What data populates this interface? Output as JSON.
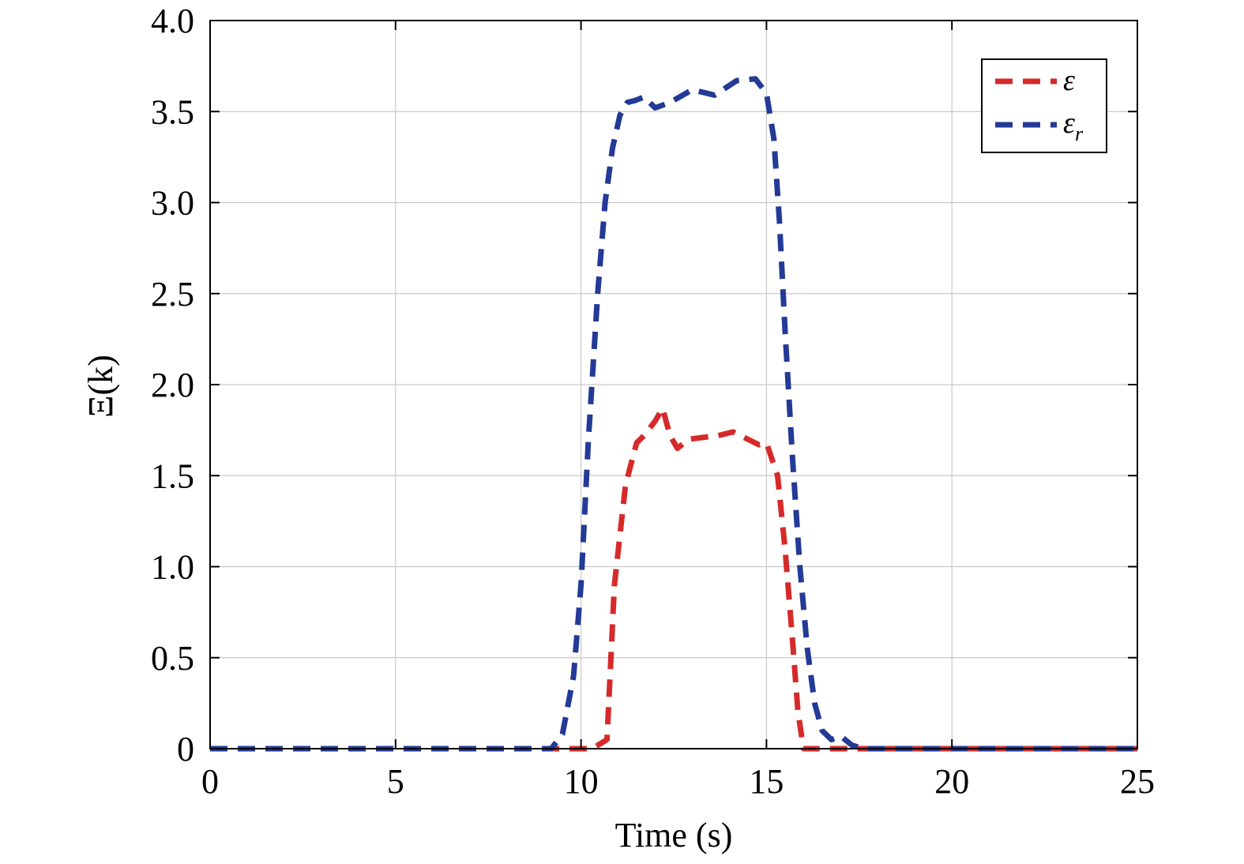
{
  "chart_data": {
    "type": "line",
    "title": "",
    "xlabel": "Time (s)",
    "ylabel": "Ξ(k)",
    "xlim": [
      0,
      25
    ],
    "ylim": [
      0,
      4.0
    ],
    "x_ticks": [
      0,
      5,
      10,
      15,
      20,
      25
    ],
    "x_tick_labels": [
      "0",
      "5",
      "10",
      "15",
      "20",
      "25"
    ],
    "y_ticks": [
      0,
      0.5,
      1.0,
      1.5,
      2.0,
      2.5,
      3.0,
      3.5,
      4.0
    ],
    "y_tick_labels": [
      "0",
      "0.5",
      "1.0",
      "1.5",
      "2.0",
      "2.5",
      "3.0",
      "3.5",
      "4.0"
    ],
    "grid": true,
    "legend_position": "top-right",
    "series": [
      {
        "name": "ε",
        "color": "#d62a2a",
        "line_style": "dashed",
        "x": [
          0,
          10.3,
          10.7,
          10.9,
          11.2,
          11.5,
          11.7,
          12.0,
          12.2,
          12.4,
          12.6,
          12.9,
          13.3,
          13.7,
          14.1,
          14.5,
          14.8,
          15.0,
          15.3,
          15.5,
          15.7,
          15.85,
          16.0,
          16.2,
          25
        ],
        "y": [
          0,
          0,
          0.05,
          0.9,
          1.45,
          1.68,
          1.72,
          1.8,
          1.87,
          1.72,
          1.65,
          1.7,
          1.71,
          1.72,
          1.74,
          1.7,
          1.67,
          1.68,
          1.5,
          1.1,
          0.6,
          0.2,
          0,
          0,
          0
        ]
      },
      {
        "name": "ε_r",
        "color": "#233a96",
        "line_style": "dashed",
        "x": [
          0,
          9.2,
          9.5,
          9.8,
          10.0,
          10.2,
          10.45,
          10.65,
          10.85,
          11.05,
          11.25,
          11.45,
          11.7,
          12.0,
          12.4,
          13.0,
          13.6,
          14.2,
          14.7,
          15.0,
          15.2,
          15.35,
          15.5,
          15.7,
          15.9,
          16.1,
          16.3,
          16.5,
          16.75,
          17.0,
          17.3,
          17.6,
          25
        ],
        "y": [
          0,
          0,
          0.08,
          0.4,
          0.9,
          1.7,
          2.5,
          3.0,
          3.3,
          3.48,
          3.55,
          3.56,
          3.58,
          3.52,
          3.55,
          3.62,
          3.59,
          3.67,
          3.68,
          3.6,
          3.35,
          2.9,
          2.3,
          1.6,
          1.0,
          0.55,
          0.25,
          0.1,
          0.05,
          0.07,
          0.02,
          0,
          0
        ]
      }
    ]
  }
}
